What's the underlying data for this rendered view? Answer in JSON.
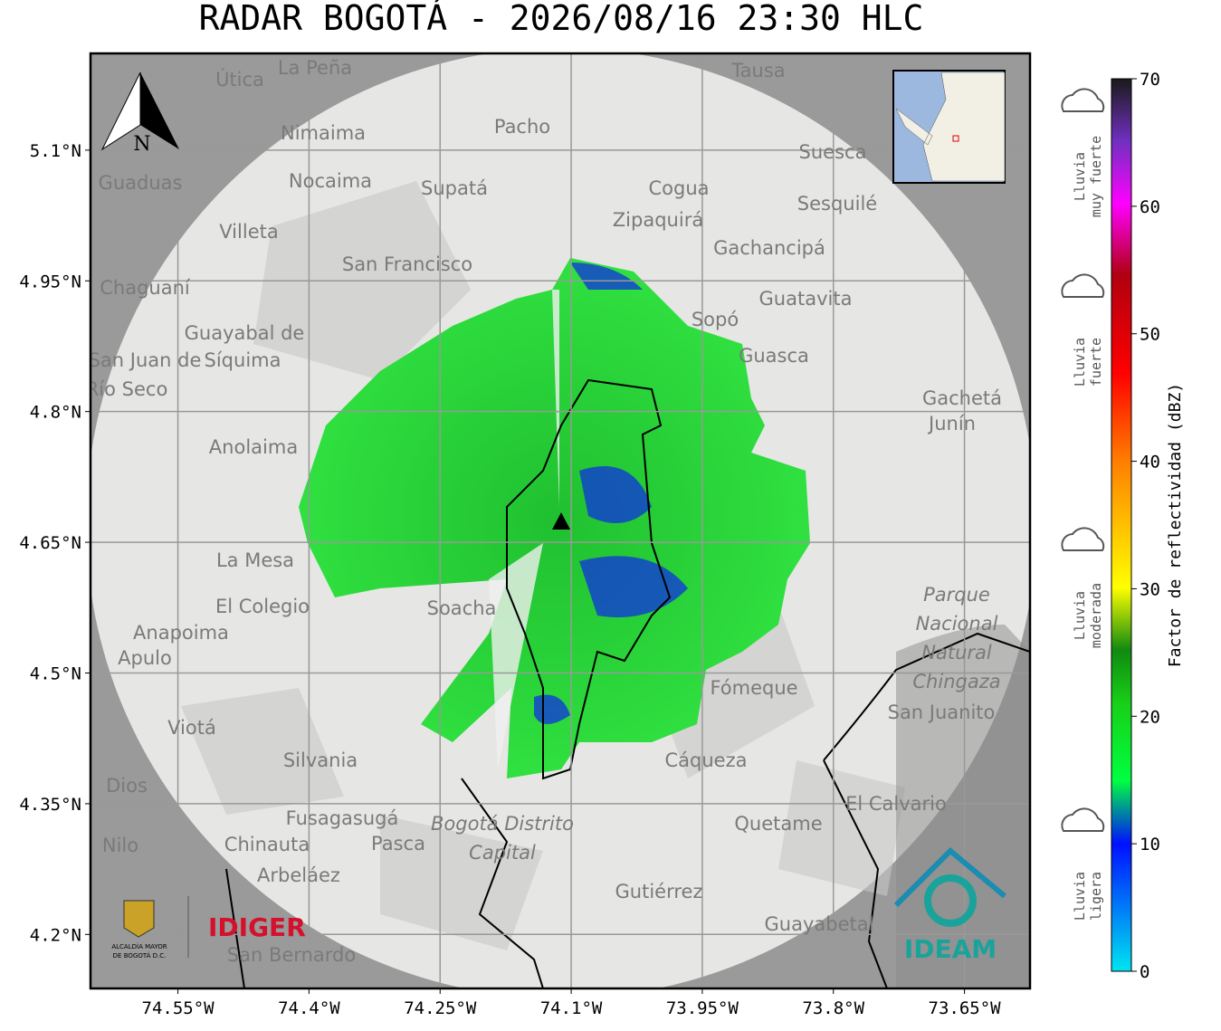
{
  "title": "RADAR BOGOTÁ - 2026/08/16 23:30 HLC",
  "map": {
    "xlim": [
      -74.65,
      -73.575
    ],
    "ylim": [
      4.138,
      5.211
    ],
    "xticks": [
      {
        "value": -74.55,
        "label": "74.55°W"
      },
      {
        "value": -74.4,
        "label": "74.4°W"
      },
      {
        "value": -74.25,
        "label": "74.25°W"
      },
      {
        "value": -74.1,
        "label": "74.1°W"
      },
      {
        "value": -73.95,
        "label": "73.95°W"
      },
      {
        "value": -73.8,
        "label": "73.8°W"
      },
      {
        "value": -73.65,
        "label": "73.65°W"
      }
    ],
    "yticks": [
      {
        "value": 4.2,
        "label": "4.2°N"
      },
      {
        "value": 4.35,
        "label": "4.35°N"
      },
      {
        "value": 4.5,
        "label": "4.5°N"
      },
      {
        "value": 4.65,
        "label": "4.65°N"
      },
      {
        "value": 4.8,
        "label": "4.8°N"
      },
      {
        "value": 4.95,
        "label": "4.95°N"
      },
      {
        "value": 5.1,
        "label": "5.1°N"
      }
    ],
    "north": "N",
    "places": [
      "La Peña",
      "Útica",
      "Tausa",
      "Pacho",
      "Nimaima",
      "Nocaima",
      "Supatá",
      "Guaduas",
      "Suesca",
      "Cogua",
      "Sesquilé",
      "Zipaquirá",
      "Villeta",
      "Gachancipá",
      "San Francisco",
      "Chaguaní",
      "Guatavita",
      "Sopó",
      "Guayabal de",
      "Síquima",
      "San Juan de",
      "Río Seco",
      "Guasca",
      "Gachetá",
      "Junín",
      "Anolaima",
      "La Mesa",
      "Soacha",
      "El Colegio",
      "Anapoima",
      "Apulo",
      "Parque",
      "Nacional",
      "Natural",
      "Chingaza",
      "Fómeque",
      "San Juanito",
      "Viotá",
      "Silvania",
      "Cáqueza",
      "Dios",
      "El Calvario",
      "Fusagasugá",
      "Bogotá Distrito",
      "Capital",
      "Quetame",
      "Pasca",
      "Chinauta",
      "Nilo",
      "Arbeláez",
      "Gutiérrez",
      "Guayabetal",
      "San Bernardo"
    ]
  },
  "colorbar": {
    "label": "Factor de reflectividad (dBZ)",
    "lim": [
      0,
      70
    ],
    "ticks": [
      0,
      10,
      20,
      30,
      40,
      50,
      60,
      70
    ],
    "categories": [
      {
        "lines": [
          "Lluvia",
          "muy fuerte"
        ]
      },
      {
        "lines": [
          "Lluvia",
          "fuerte"
        ]
      },
      {
        "lines": [
          "Lluvia",
          "moderada"
        ]
      },
      {
        "lines": [
          "Lluvia",
          "ligera"
        ]
      }
    ]
  },
  "logos": {
    "alcaldia": [
      "ALCALDÍA MAYOR",
      "DE BOGOTÁ D.C."
    ],
    "idiger": "IDIGER",
    "ideam": "IDEAM"
  }
}
